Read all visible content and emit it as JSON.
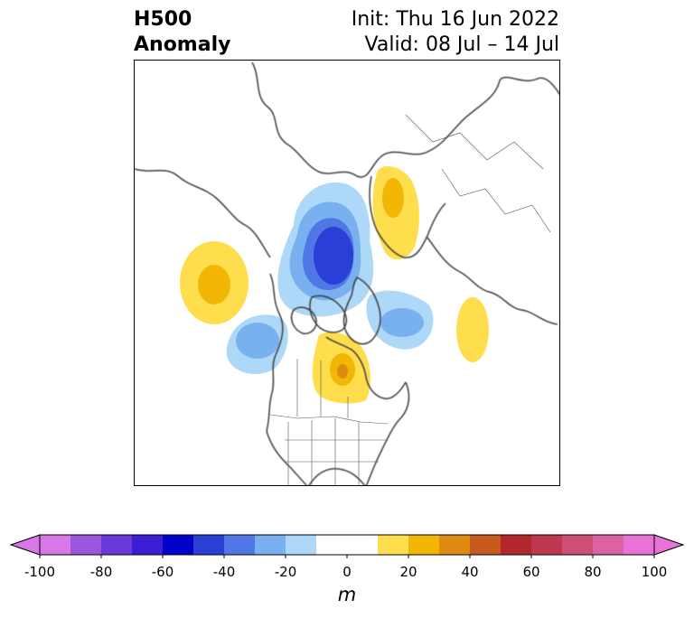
{
  "header": {
    "title_line1": "H500",
    "title_line2": "Anomaly",
    "init_text": "Init: Thu 16 Jun 2022",
    "valid_text": "Valid: 08 Jul – 14 Jul"
  },
  "map": {
    "projection": "north polar stereographic",
    "field": "500 hPa geopotential height anomaly",
    "coastline_color": "#3c3c3c",
    "anomaly_regions": [
      {
        "region": "north of Alaska / Beaufort Sea",
        "sign": "negative",
        "peak_m": -60
      },
      {
        "region": "Gulf of Alaska",
        "sign": "negative",
        "peak_m": -30
      },
      {
        "region": "Baffin Bay / Labrador",
        "sign": "negative",
        "peak_m": -30
      },
      {
        "region": "central Canada / Hudson Bay west",
        "sign": "positive",
        "peak_m": 30
      },
      {
        "region": "western Russia / Scandinavia",
        "sign": "positive",
        "peak_m": 20
      },
      {
        "region": "North Atlantic",
        "sign": "positive",
        "peak_m": 20
      },
      {
        "region": "North Pacific / Kamchatka",
        "sign": "positive",
        "peak_m": 30
      }
    ]
  },
  "colorbar": {
    "unit": "m",
    "ticks": [
      "-100",
      "-80",
      "-60",
      "-40",
      "-20",
      "0",
      "20",
      "40",
      "60",
      "80",
      "100"
    ],
    "bins": [
      {
        "from": -100,
        "to": -90,
        "color": "#d778e6"
      },
      {
        "from": -90,
        "to": -80,
        "color": "#9b56de"
      },
      {
        "from": -80,
        "to": -70,
        "color": "#6a39d8"
      },
      {
        "from": -70,
        "to": -60,
        "color": "#3c1ed2"
      },
      {
        "from": -60,
        "to": -50,
        "color": "#0000c8"
      },
      {
        "from": -50,
        "to": -40,
        "color": "#2a3fd6"
      },
      {
        "from": -40,
        "to": -30,
        "color": "#4f78e6"
      },
      {
        "from": -30,
        "to": -20,
        "color": "#79b0f0"
      },
      {
        "from": -20,
        "to": -10,
        "color": "#add8f7"
      },
      {
        "from": -10,
        "to": 10,
        "color": "#ffffff"
      },
      {
        "from": 10,
        "to": 20,
        "color": "#ffde4e"
      },
      {
        "from": 20,
        "to": 30,
        "color": "#f2b705"
      },
      {
        "from": 30,
        "to": 40,
        "color": "#de8a13"
      },
      {
        "from": 40,
        "to": 50,
        "color": "#c85a1e"
      },
      {
        "from": 50,
        "to": 60,
        "color": "#b2272a"
      },
      {
        "from": 60,
        "to": 70,
        "color": "#c0384f"
      },
      {
        "from": 70,
        "to": 80,
        "color": "#cf4e75"
      },
      {
        "from": 80,
        "to": 90,
        "color": "#db63a3"
      },
      {
        "from": 90,
        "to": 100,
        "color": "#e872d6"
      }
    ],
    "under_color": "#d778e6",
    "over_color": "#e872d6",
    "extend": "both"
  }
}
